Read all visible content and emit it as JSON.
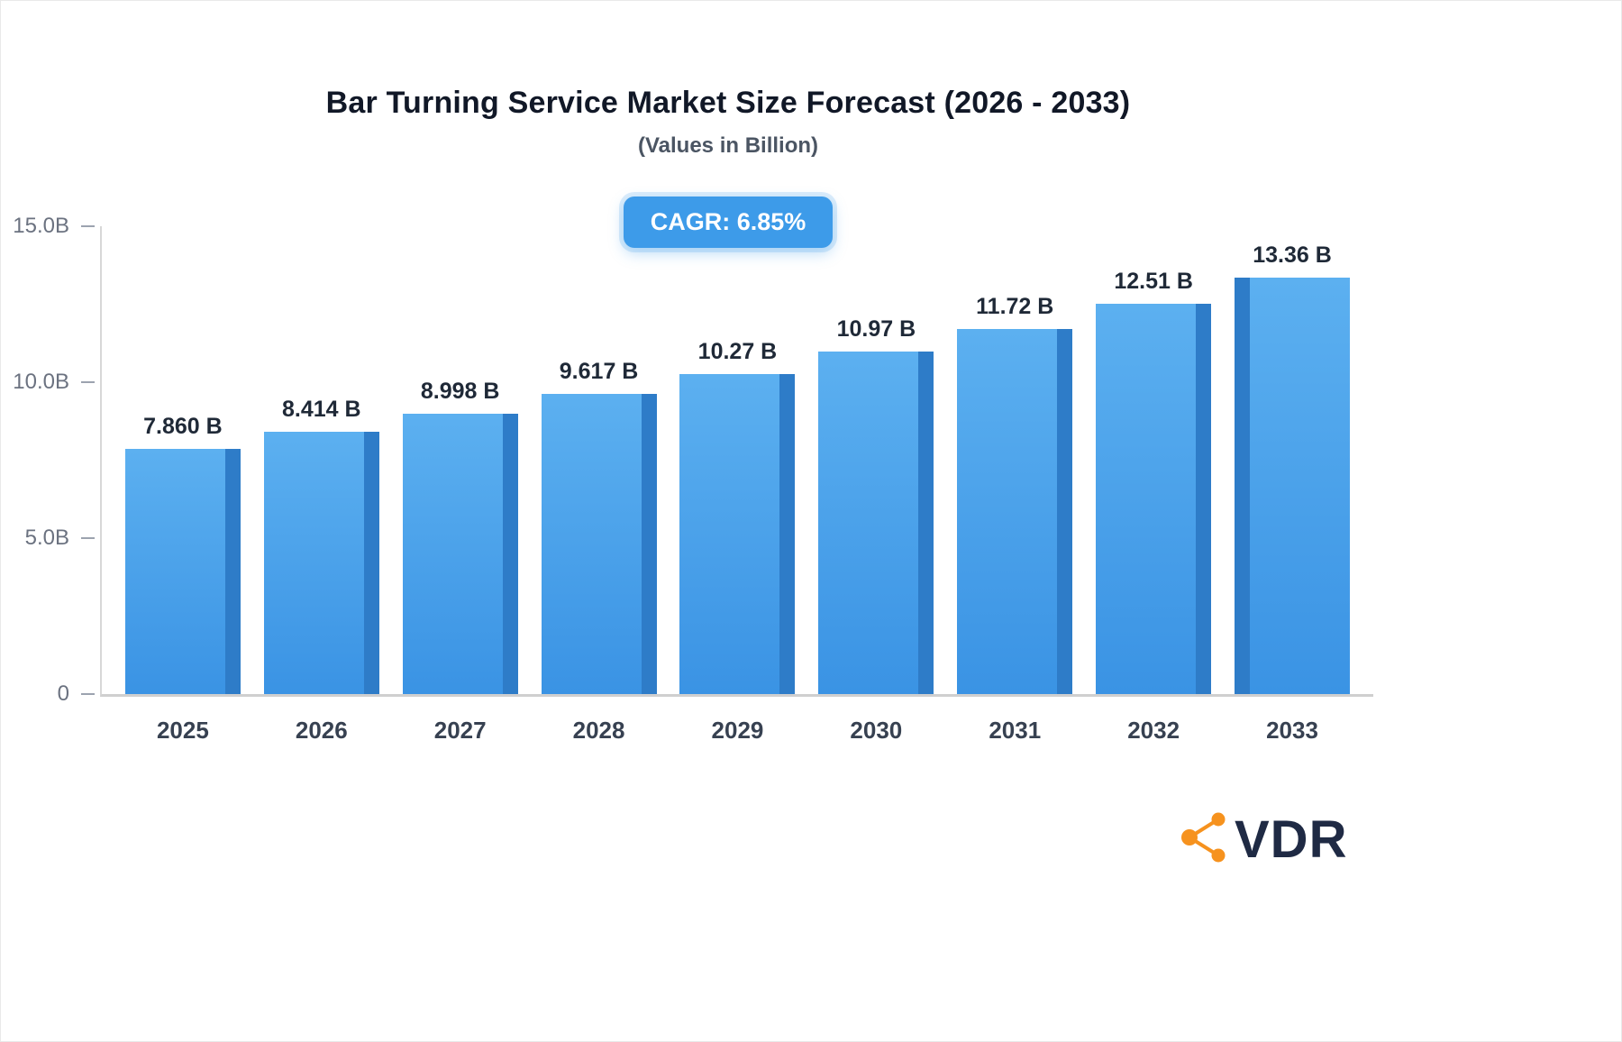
{
  "title": "Bar Turning Service Market Size Forecast (2026 - 2033)",
  "subtitle": "(Values in Billion)",
  "cagr": {
    "label": "CAGR: 6.85%"
  },
  "logo": {
    "text": "VDR"
  },
  "colors": {
    "accent": "#3d9be9",
    "bar_face_top": "#5cb0f0",
    "bar_face_bottom": "#3a93e4",
    "bar_side": "#2e7cc8",
    "logo_icon": "#f6921e",
    "logo_text": "#1f2a44"
  },
  "chart_data": {
    "type": "bar",
    "title": "Bar Turning Service Market Size Forecast (2026 - 2033)",
    "subtitle": "(Values in Billion)",
    "categories": [
      "2025",
      "2026",
      "2027",
      "2028",
      "2029",
      "2030",
      "2031",
      "2032",
      "2033"
    ],
    "values": [
      7.86,
      8.414,
      8.998,
      9.617,
      10.27,
      10.97,
      11.72,
      12.51,
      13.36
    ],
    "value_labels": [
      "7.860 B",
      "8.414 B",
      "8.998 B",
      "9.617 B",
      "10.27 B",
      "10.97 B",
      "11.72 B",
      "12.51 B",
      "13.36 B"
    ],
    "y_ticks": [
      "15.0B",
      "10.0B",
      "5.0B",
      "0"
    ],
    "ylim": [
      0,
      15
    ],
    "xlabel": "",
    "ylabel": "",
    "grid": false,
    "legend": false,
    "annotation": "CAGR: 6.85%"
  }
}
